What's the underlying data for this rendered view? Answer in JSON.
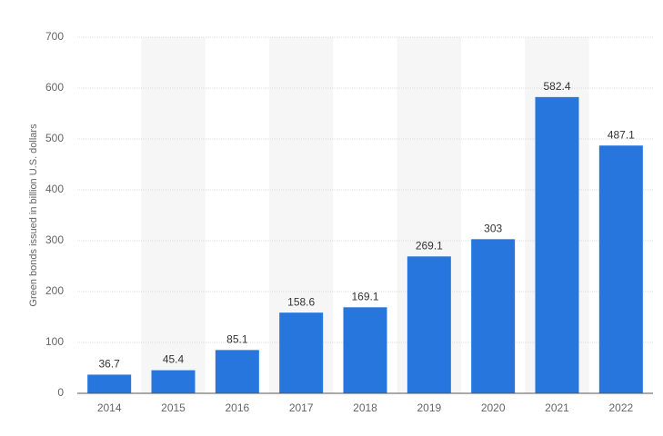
{
  "chart_data": {
    "type": "bar",
    "y_label": "Green bonds issued in billion U.S. dollars",
    "categories": [
      "2014",
      "2015",
      "2016",
      "2017",
      "2018",
      "2019",
      "2020",
      "2021",
      "2022"
    ],
    "values": [
      36.7,
      45.4,
      85.1,
      158.6,
      169.1,
      269.1,
      303,
      582.4,
      487.1
    ],
    "color": "#2776dd",
    "ylim": [
      0,
      700
    ],
    "yticks": [
      0,
      100,
      200,
      300,
      400,
      500,
      600,
      700
    ],
    "grid": true
  }
}
